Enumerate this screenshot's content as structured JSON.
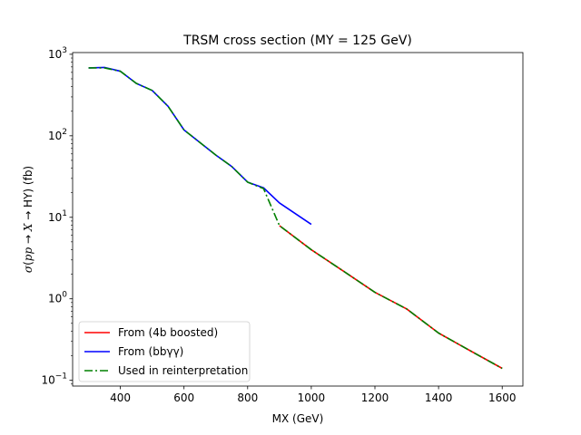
{
  "chart_data": {
    "type": "line",
    "title": "TRSM cross section (MY = 125 GeV)",
    "xlabel": "MX (GeV)",
    "ylabel": "σ(pp → X → HY) (fb)",
    "xlim": [
      250,
      1665
    ],
    "ylim": [
      0.085,
      1050
    ],
    "yscale": "log",
    "grid": false,
    "legend_position": "lower-left",
    "xticks": [
      {
        "value": 400,
        "label": "400"
      },
      {
        "value": 600,
        "label": "600"
      },
      {
        "value": 800,
        "label": "800"
      },
      {
        "value": 1000,
        "label": "1000"
      },
      {
        "value": 1200,
        "label": "1200"
      },
      {
        "value": 1400,
        "label": "1400"
      },
      {
        "value": 1600,
        "label": "1600"
      }
    ],
    "yticks": [
      {
        "value": 0.1,
        "base": "10",
        "exp": "−1"
      },
      {
        "value": 1,
        "base": "10",
        "exp": "0"
      },
      {
        "value": 10,
        "base": "10",
        "exp": "1"
      },
      {
        "value": 100,
        "base": "10",
        "exp": "2"
      },
      {
        "value": 1000,
        "base": "10",
        "exp": "3"
      }
    ],
    "series": [
      {
        "name": "From (4b boosted)",
        "color": "#ff0000",
        "style": "solid",
        "x": [
          900,
          1000,
          1100,
          1200,
          1300,
          1400,
          1500,
          1600
        ],
        "y": [
          7.9,
          4.0,
          2.2,
          1.2,
          0.75,
          0.38,
          0.23,
          0.14
        ]
      },
      {
        "name": "From (bbγγ)",
        "color": "#0000ff",
        "style": "solid",
        "x": [
          300,
          350,
          400,
          450,
          500,
          550,
          600,
          700,
          750,
          800,
          850,
          900,
          1000
        ],
        "y": [
          680,
          690,
          620,
          440,
          360,
          230,
          118,
          58,
          42,
          27,
          23,
          15,
          8.2
        ]
      },
      {
        "name": "Used in reinterpretation",
        "color": "#008000",
        "style": "dashdot",
        "x": [
          300,
          350,
          400,
          450,
          500,
          550,
          600,
          700,
          750,
          800,
          850,
          900,
          1000,
          1100,
          1200,
          1300,
          1400,
          1500,
          1600
        ],
        "y": [
          680,
          680,
          620,
          440,
          360,
          230,
          118,
          58,
          42,
          27,
          22.5,
          7.9,
          4.0,
          2.2,
          1.2,
          0.75,
          0.38,
          0.23,
          0.14
        ]
      }
    ]
  }
}
